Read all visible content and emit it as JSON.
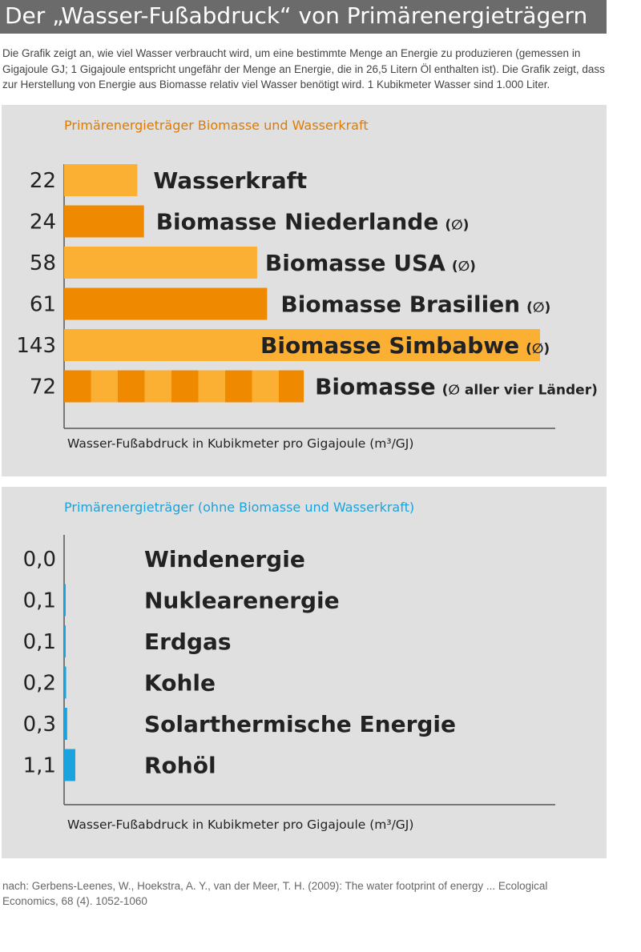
{
  "title": "Der „Wasser-Fußabdruck“ von Primärenergieträgern",
  "intro": "Die Grafik zeigt an, wie viel Wasser verbraucht wird, um eine bestimmte Menge an Energie zu produzieren (gemessen in Gigajoule GJ; 1 Gigajoule entspricht ungefähr der Menge an Energie, die in 26,5 Litern Öl enthalten ist). Die Grafik zeigt, dass zur Herstellung von Energie aus Biomasse relativ viel Wasser benötigt wird. 1 Kubikmeter Wasser sind 1.000 Liter.",
  "source": "nach: Gerbens-Leenes, W., Hoekstra, A. Y., van der Meer, T. H. (2009): The water footprint of energy ... Ecological Economics, 68 (4). 1052-1060",
  "colors": {
    "light_orange": "#fbb034",
    "dark_orange": "#ef8a00",
    "blue": "#1aa3dc",
    "title_bar": "#6b6b6b",
    "panel": "#e0e0e0"
  },
  "chart_data": [
    {
      "type": "bar",
      "orientation": "horizontal",
      "title": "Primärenergieträger Biomasse und Wasserkraft",
      "xlabel": "Wasser-Fußabdruck in Kubikmeter pro Gigajoule (m³/GJ)",
      "categories": [
        "Wasserkraft",
        "Biomasse Niederlande",
        "Biomasse USA",
        "Biomasse Brasilien",
        "Biomasse Simbabwe",
        "Biomasse"
      ],
      "value_labels": [
        "22",
        "24",
        "58",
        "61",
        "143",
        "72"
      ],
      "annotations": [
        "",
        "(∅)",
        "(∅)",
        "(∅)",
        "(∅)",
        "(∅ aller vier Länder)"
      ],
      "values": [
        22,
        24,
        58,
        61,
        143,
        72
      ],
      "bar_colors": [
        "#fbb034",
        "#ef8a00",
        "#fbb034",
        "#ef8a00",
        "#fbb034",
        "striped"
      ],
      "grid": false
    },
    {
      "type": "bar",
      "orientation": "horizontal",
      "title": "Primärenergieträger (ohne Biomasse und Wasserkraft)",
      "xlabel": "Wasser-Fußabdruck in Kubikmeter pro Gigajoule (m³/GJ)",
      "categories": [
        "Windenergie",
        "Nuklearenergie",
        "Erdgas",
        "Kohle",
        "Solarthermische Energie",
        "Rohöl"
      ],
      "value_labels": [
        "0,0",
        "0,1",
        "0,1",
        "0,2",
        "0,3",
        "1,1"
      ],
      "values": [
        0.0,
        0.1,
        0.1,
        0.2,
        0.3,
        1.1
      ],
      "bar_color": "#1aa3dc",
      "grid": false
    }
  ]
}
